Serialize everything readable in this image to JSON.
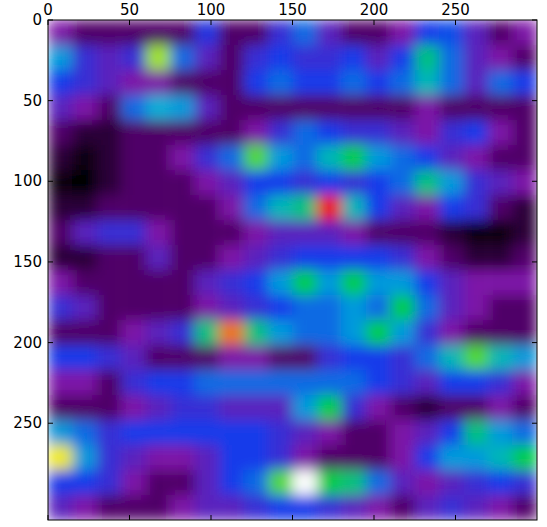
{
  "chart_data": {
    "type": "heatmap",
    "xlim": [
      0,
      300
    ],
    "ylim": [
      310,
      0
    ],
    "xticks": [
      0,
      50,
      100,
      150,
      200,
      250
    ],
    "yticks": [
      0,
      50,
      100,
      150,
      200,
      250
    ],
    "cells": [
      [
        2.5,
        2,
        2,
        2,
        2,
        2,
        3.8,
        2,
        2,
        3.5,
        4.5,
        3,
        2,
        2,
        2.5,
        4,
        4.2,
        3,
        2,
        2.5
      ],
      [
        5,
        3.5,
        3,
        3.5,
        7.5,
        4.5,
        3,
        2,
        3.5,
        4,
        3.5,
        3.5,
        4,
        3,
        4,
        6,
        4.5,
        3,
        2.5,
        2
      ],
      [
        4,
        3.5,
        3,
        2.5,
        2.5,
        2,
        2,
        2,
        4,
        4.5,
        4,
        4,
        4.5,
        4,
        4.5,
        5.5,
        4.5,
        3,
        4.5,
        4
      ],
      [
        3,
        2.5,
        2,
        4.5,
        5.2,
        5,
        3,
        2,
        2,
        2,
        2,
        2,
        2,
        2,
        2,
        2.5,
        2,
        2,
        2,
        2
      ],
      [
        2,
        1.5,
        1.5,
        2,
        2,
        2,
        2,
        2,
        2.5,
        3.5,
        4.5,
        4,
        3.5,
        3.5,
        3,
        2.5,
        3.5,
        4,
        2.5,
        2
      ],
      [
        1.5,
        1,
        1.5,
        2,
        2,
        2.5,
        3.5,
        4.5,
        7,
        5,
        4.5,
        5.5,
        6.5,
        5,
        4.5,
        4,
        3,
        2.5,
        2,
        2
      ],
      [
        1,
        0.8,
        1.5,
        2,
        2,
        2,
        2.5,
        3,
        4,
        4,
        3.5,
        4,
        3.5,
        4,
        4.5,
        6,
        5,
        3.5,
        3,
        2.5
      ],
      [
        1.5,
        1.5,
        2,
        2,
        2,
        2,
        2,
        2.5,
        4.5,
        5.5,
        6,
        9,
        5.5,
        4,
        3,
        2.5,
        4,
        3.5,
        2,
        1.5
      ],
      [
        2,
        3,
        3.5,
        3.5,
        2.5,
        2,
        2,
        2,
        2.5,
        3,
        3,
        3,
        2.5,
        2,
        2,
        2,
        1.5,
        1,
        1,
        1.5
      ],
      [
        1.5,
        1.5,
        2,
        2,
        3,
        2,
        2,
        2.5,
        3,
        3.5,
        4,
        4,
        4,
        4,
        3.5,
        2.5,
        2,
        1.5,
        1.5,
        2
      ],
      [
        2.5,
        2,
        2,
        2,
        2,
        2,
        3,
        3.5,
        4,
        5,
        6.5,
        5,
        6.5,
        5,
        5,
        4,
        3,
        2.5,
        2.5,
        2.5
      ],
      [
        3.5,
        3,
        2,
        2,
        2,
        2,
        2.5,
        3,
        3.5,
        4,
        4.5,
        4.5,
        5,
        4.5,
        6.5,
        4.5,
        3,
        2.5,
        2,
        2
      ],
      [
        2,
        2,
        2,
        2.5,
        3,
        3.5,
        6,
        8.5,
        6,
        5,
        4.5,
        4.5,
        5,
        6.5,
        5,
        3.5,
        2.5,
        2,
        2,
        2
      ],
      [
        4,
        4,
        3.5,
        3,
        2,
        2,
        2,
        2.5,
        2.5,
        2,
        2,
        3.5,
        4,
        4,
        3.5,
        4.5,
        5.5,
        7,
        5.5,
        5
      ],
      [
        2.5,
        2.5,
        2,
        3.5,
        4,
        4,
        4.5,
        4.5,
        4.5,
        4.5,
        4.5,
        4.5,
        4.5,
        4,
        3.5,
        3,
        4,
        4,
        3.5,
        2.5
      ],
      [
        2,
        2,
        2,
        2.5,
        3,
        3.5,
        3.5,
        3,
        3,
        3,
        5,
        6.5,
        3.5,
        2.5,
        2,
        1.5,
        2,
        2,
        2.5,
        2
      ],
      [
        5,
        4.5,
        3.5,
        4,
        4,
        4,
        4,
        4,
        4,
        3.5,
        3,
        2.5,
        2,
        2,
        2.5,
        3,
        4,
        6,
        5,
        4.5
      ],
      [
        8,
        5,
        3.5,
        3,
        2.5,
        2.5,
        3,
        4,
        4,
        3.5,
        2.5,
        2,
        2,
        2,
        2.5,
        4,
        5,
        5,
        5.5,
        6.5
      ],
      [
        4,
        4,
        3.5,
        2.5,
        2,
        2,
        3,
        4,
        4.5,
        7,
        10,
        6.5,
        6,
        4.5,
        3,
        2.5,
        3,
        3.5,
        4,
        3.5
      ],
      [
        3,
        2.5,
        2,
        2,
        2,
        2.5,
        3,
        3,
        3.5,
        4,
        4,
        3.5,
        3,
        2.5,
        2,
        3,
        3.5,
        3,
        2.5,
        2
      ]
    ]
  }
}
